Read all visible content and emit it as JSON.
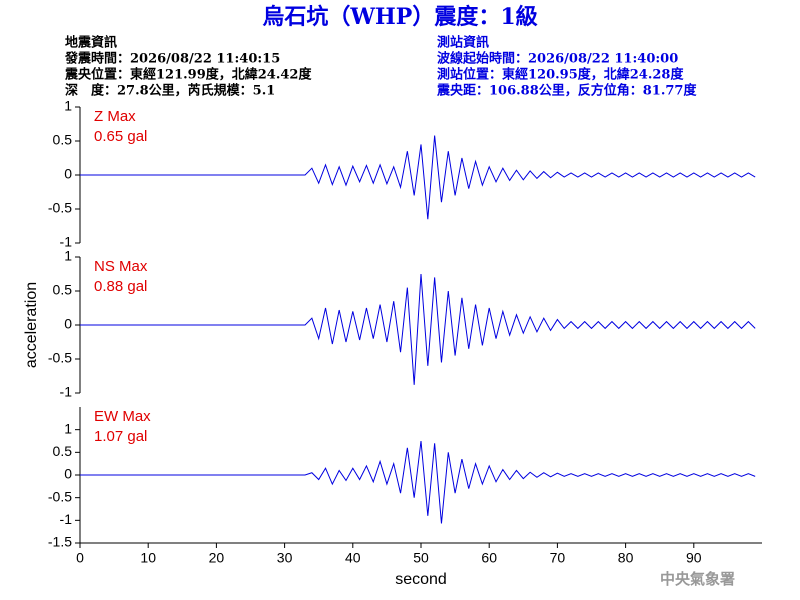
{
  "header": {
    "title": "烏石坑（WHP）震度：1級",
    "left": [
      "地震資訊",
      "發震時間：2026/08/22 11:40:15",
      "震央位置：東經121.99度，北緯24.42度",
      "深　度：27.8公里，芮氏規模：5.1"
    ],
    "right": [
      "測站資訊",
      "波線起始時間：2026/08/22 11:40:00",
      "測站位置：東經120.95度，北緯24.28度",
      "震央距：106.88公里，反方位角：81.77度"
    ],
    "footer": "中央氣象署"
  },
  "chart_data": [
    {
      "type": "line",
      "annotation": [
        "Z Max",
        "0.65 gal"
      ],
      "xlim": [
        0,
        100
      ],
      "ylim": [
        -1,
        1
      ],
      "yticks": [
        -1,
        -0.5,
        0,
        0.5,
        1
      ],
      "x": [
        0,
        10,
        20,
        30,
        33,
        34,
        35,
        36,
        37,
        38,
        39,
        40,
        41,
        42,
        43,
        44,
        45,
        46,
        47,
        48,
        49,
        50,
        51,
        52,
        53,
        54,
        55,
        56,
        57,
        58,
        59,
        60,
        61,
        62,
        63,
        64,
        65,
        66,
        67,
        68,
        69,
        70,
        71,
        72,
        73,
        74,
        75,
        76,
        77,
        78,
        79,
        80,
        81,
        82,
        83,
        84,
        85,
        86,
        87,
        88,
        89,
        90,
        91,
        92,
        93,
        94,
        95,
        96,
        97,
        98,
        99
      ],
      "series": [
        {
          "name": "Z",
          "color": "#0000e0",
          "values": [
            0,
            0,
            0,
            0,
            0,
            0.1,
            -0.12,
            0.15,
            -0.14,
            0.12,
            -0.15,
            0.13,
            -0.1,
            0.14,
            -0.12,
            0.15,
            -0.13,
            0.12,
            -0.18,
            0.35,
            -0.3,
            0.45,
            -0.65,
            0.58,
            -0.4,
            0.35,
            -0.3,
            0.25,
            -0.2,
            0.2,
            -0.15,
            0.12,
            -0.1,
            0.1,
            -0.08,
            0.07,
            -0.07,
            0.06,
            -0.05,
            0.05,
            -0.04,
            0.04,
            -0.03,
            0.03,
            -0.03,
            0.03,
            -0.03,
            0.03,
            -0.03,
            0.03,
            -0.03,
            0.03,
            -0.03,
            0.03,
            -0.03,
            0.03,
            -0.03,
            0.03,
            -0.03,
            0.03,
            -0.03,
            0.03,
            -0.03,
            0.03,
            -0.03,
            0.03,
            -0.03,
            0.03,
            -0.03,
            0.03,
            -0.03
          ]
        }
      ]
    },
    {
      "type": "line",
      "annotation": [
        "NS Max",
        "0.88 gal"
      ],
      "y_label": "acceleration",
      "xlim": [
        0,
        100
      ],
      "ylim": [
        -1,
        1
      ],
      "yticks": [
        -1,
        -0.5,
        0,
        0.5,
        1
      ],
      "x": [
        0,
        10,
        20,
        30,
        33,
        34,
        35,
        36,
        37,
        38,
        39,
        40,
        41,
        42,
        43,
        44,
        45,
        46,
        47,
        48,
        49,
        50,
        51,
        52,
        53,
        54,
        55,
        56,
        57,
        58,
        59,
        60,
        61,
        62,
        63,
        64,
        65,
        66,
        67,
        68,
        69,
        70,
        71,
        72,
        73,
        74,
        75,
        76,
        77,
        78,
        79,
        80,
        81,
        82,
        83,
        84,
        85,
        86,
        87,
        88,
        89,
        90,
        91,
        92,
        93,
        94,
        95,
        96,
        97,
        98,
        99
      ],
      "series": [
        {
          "name": "NS",
          "color": "#0000e0",
          "values": [
            0,
            0,
            0,
            0,
            0,
            0.1,
            -0.2,
            0.25,
            -0.28,
            0.22,
            -0.25,
            0.2,
            -0.22,
            0.25,
            -0.2,
            0.3,
            -0.25,
            0.35,
            -0.4,
            0.55,
            -0.88,
            0.75,
            -0.6,
            0.7,
            -0.55,
            0.5,
            -0.45,
            0.4,
            -0.35,
            0.3,
            -0.3,
            0.25,
            -0.2,
            0.2,
            -0.15,
            0.15,
            -0.12,
            0.12,
            -0.1,
            0.1,
            -0.08,
            0.08,
            -0.05,
            0.05,
            -0.05,
            0.05,
            -0.05,
            0.05,
            -0.05,
            0.05,
            -0.05,
            0.05,
            -0.05,
            0.05,
            -0.05,
            0.05,
            -0.05,
            0.05,
            -0.05,
            0.05,
            -0.05,
            0.05,
            -0.05,
            0.05,
            -0.05,
            0.05,
            -0.05,
            0.05,
            -0.05,
            0.05,
            -0.05
          ]
        }
      ]
    },
    {
      "type": "line",
      "annotation": [
        "EW Max",
        "1.07 gal"
      ],
      "x_label": "second",
      "xlim": [
        0,
        100
      ],
      "xticks": [
        0,
        10,
        20,
        30,
        40,
        50,
        60,
        70,
        80,
        90
      ],
      "ylim": [
        -1.5,
        1.5
      ],
      "yticks": [
        -1.5,
        -1,
        -0.5,
        0,
        0.5,
        1
      ],
      "x": [
        0,
        10,
        20,
        30,
        33,
        34,
        35,
        36,
        37,
        38,
        39,
        40,
        41,
        42,
        43,
        44,
        45,
        46,
        47,
        48,
        49,
        50,
        51,
        52,
        53,
        54,
        55,
        56,
        57,
        58,
        59,
        60,
        61,
        62,
        63,
        64,
        65,
        66,
        67,
        68,
        69,
        70,
        71,
        72,
        73,
        74,
        75,
        76,
        77,
        78,
        79,
        80,
        81,
        82,
        83,
        84,
        85,
        86,
        87,
        88,
        89,
        90,
        91,
        92,
        93,
        94,
        95,
        96,
        97,
        98,
        99
      ],
      "series": [
        {
          "name": "EW",
          "color": "#0000e0",
          "values": [
            0,
            0,
            0,
            0,
            0,
            0.05,
            -0.1,
            0.15,
            -0.2,
            0.1,
            -0.12,
            0.15,
            -0.1,
            0.2,
            -0.15,
            0.3,
            -0.2,
            0.25,
            -0.4,
            0.6,
            -0.5,
            0.75,
            -0.9,
            0.7,
            -1.07,
            0.5,
            -0.4,
            0.35,
            -0.3,
            0.25,
            -0.2,
            0.2,
            -0.15,
            0.12,
            -0.1,
            0.1,
            -0.08,
            0.06,
            -0.05,
            0.05,
            -0.04,
            0.04,
            -0.03,
            0.03,
            -0.03,
            0.03,
            -0.03,
            0.03,
            -0.03,
            0.03,
            -0.03,
            0.03,
            -0.03,
            0.03,
            -0.03,
            0.03,
            -0.03,
            0.03,
            -0.03,
            0.03,
            -0.03,
            0.03,
            -0.03,
            0.03,
            -0.03,
            0.03,
            -0.03,
            0.03,
            -0.03,
            0.03,
            -0.03
          ]
        }
      ]
    }
  ]
}
